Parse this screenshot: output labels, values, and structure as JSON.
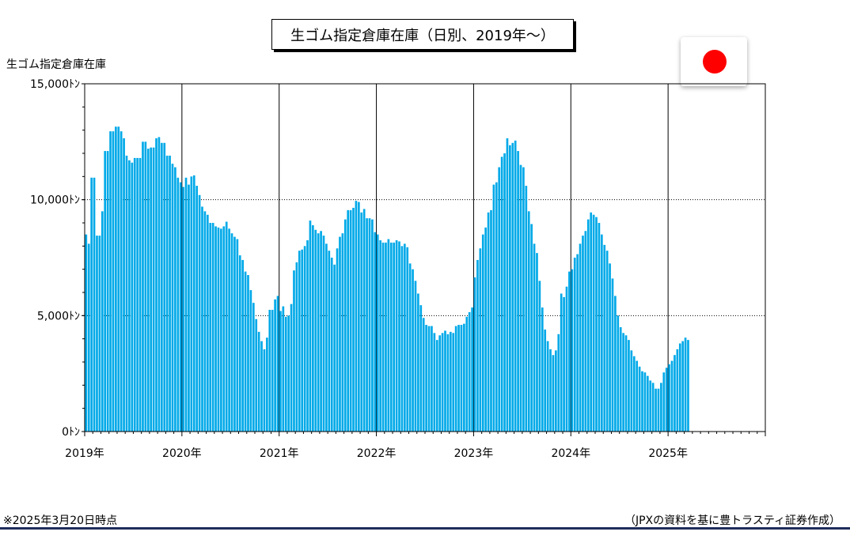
{
  "colors": {
    "bar": "#00a9e8",
    "flag_red": "#ff0000",
    "rule": "#1f2d5a"
  },
  "flag": {
    "icon": "japan-flag-icon"
  },
  "footnote_left": "※2025年3月20日時点",
  "footnote_right": "（JPXの資料を基に豊トラスティ証券作成）",
  "chart_data": {
    "type": "bar",
    "title": "生ゴム指定倉庫在庫（日別、2019年～）",
    "ylabel": "生ゴム指定倉庫在庫",
    "xlabel": "",
    "ylim": [
      0,
      15000
    ],
    "xlim": [
      2019.0,
      2026.0
    ],
    "y_ticks": [
      {
        "value": 0,
        "label": "0ﾄﾝ"
      },
      {
        "value": 5000,
        "label": "5,000ﾄﾝ"
      },
      {
        "value": 10000,
        "label": "10,000ﾄﾝ"
      },
      {
        "value": 15000,
        "label": "15,000ﾄﾝ"
      }
    ],
    "x_ticks": [
      {
        "value": 2019,
        "label": "2019年"
      },
      {
        "value": 2020,
        "label": "2020年"
      },
      {
        "value": 2021,
        "label": "2021年"
      },
      {
        "value": 2022,
        "label": "2022年"
      },
      {
        "value": 2023,
        "label": "2023年"
      },
      {
        "value": 2024,
        "label": "2024年"
      },
      {
        "value": 2025,
        "label": "2025年"
      }
    ],
    "grid": {
      "horizontal": "dotted",
      "vertical": "solid-at-year"
    },
    "legend": "none",
    "values": [
      8500,
      8100,
      10950,
      10950,
      8450,
      8450,
      9500,
      12100,
      12100,
      12950,
      12950,
      13150,
      13150,
      12950,
      12650,
      11900,
      11700,
      11600,
      11800,
      11800,
      11800,
      12500,
      12500,
      12200,
      12250,
      12250,
      12650,
      12700,
      12450,
      12450,
      11900,
      11900,
      11550,
      11400,
      10950,
      10750,
      10550,
      10950,
      10650,
      11000,
      11050,
      10600,
      10200,
      9700,
      9500,
      9350,
      9000,
      9000,
      8850,
      8800,
      8750,
      8850,
      9050,
      8750,
      8550,
      8400,
      8300,
      7600,
      7400,
      6900,
      6750,
      6100,
      5550,
      4850,
      4300,
      3900,
      3550,
      4050,
      5250,
      5250,
      5700,
      5850,
      5200,
      5400,
      4950,
      5000,
      5500,
      6950,
      7300,
      7800,
      7850,
      8000,
      8250,
      9100,
      8900,
      8700,
      8550,
      8650,
      8450,
      8100,
      7800,
      7500,
      7200,
      7900,
      8400,
      8550,
      9150,
      9550,
      9550,
      9650,
      9950,
      9900,
      9450,
      9600,
      9200,
      9200,
      9150,
      8600,
      8500,
      8250,
      8150,
      8150,
      8300,
      8150,
      8150,
      8250,
      8200,
      8000,
      8100,
      7950,
      7250,
      7000,
      6500,
      5950,
      5450,
      4900,
      4600,
      4550,
      4550,
      4250,
      3950,
      4150,
      4250,
      4350,
      4200,
      4300,
      4250,
      4550,
      4600,
      4600,
      4650,
      4950,
      5150,
      5350,
      6650,
      7400,
      7900,
      8500,
      8800,
      9450,
      9550,
      10650,
      10750,
      11400,
      11850,
      12000,
      12650,
      12350,
      12450,
      12550,
      12100,
      11500,
      11400,
      10600,
      9500,
      8950,
      8100,
      7700,
      6500,
      5350,
      4400,
      3900,
      3550,
      3300,
      3500,
      4200,
      5950,
      5800,
      6250,
      6900,
      7000,
      7500,
      7650,
      8100,
      8450,
      8650,
      9150,
      9450,
      9350,
      9250,
      9000,
      8500,
      8050,
      7800,
      7250,
      6600,
      5850,
      5000,
      4500,
      4250,
      4150,
      3950,
      3500,
      3250,
      3050,
      2800,
      2600,
      2550,
      2400,
      2200,
      2100,
      1850,
      1850,
      2100,
      2550,
      2750,
      2900,
      3050,
      3300,
      3550,
      3800,
      3900,
      4050,
      3950
    ]
  }
}
